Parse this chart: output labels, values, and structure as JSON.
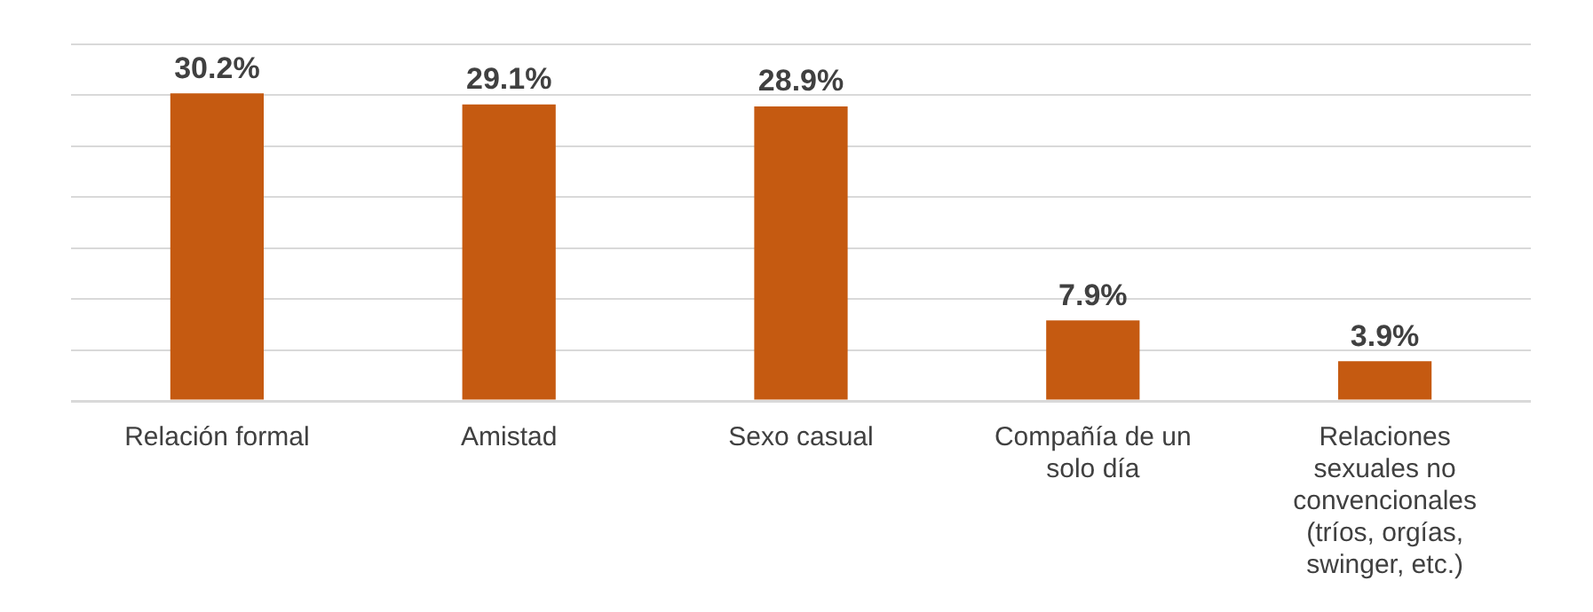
{
  "chart_data": {
    "type": "bar",
    "categories": [
      "Relación formal",
      "Amistad",
      "Sexo casual",
      "Compañía de un solo día",
      "Relaciones sexuales no convencionales (tríos, orgías, swinger, etc.)"
    ],
    "values": [
      30.2,
      29.1,
      28.9,
      7.9,
      3.9
    ],
    "value_labels": [
      "30.2%",
      "29.1%",
      "28.9%",
      "7.9%",
      "3.9%"
    ],
    "color": "#c55a11",
    "ylim": [
      0,
      35
    ],
    "yticks": [
      {
        "value": 0,
        "label": null
      },
      {
        "value": 5,
        "label": null
      },
      {
        "value": 10,
        "label": null
      },
      {
        "value": 15,
        "label": null
      },
      {
        "value": 20,
        "label": null
      },
      {
        "value": 25,
        "label": null
      },
      {
        "value": 30,
        "label": null
      },
      {
        "value": 35,
        "label": null
      }
    ],
    "grid": "y",
    "tick_labels": "x",
    "legend": false
  }
}
